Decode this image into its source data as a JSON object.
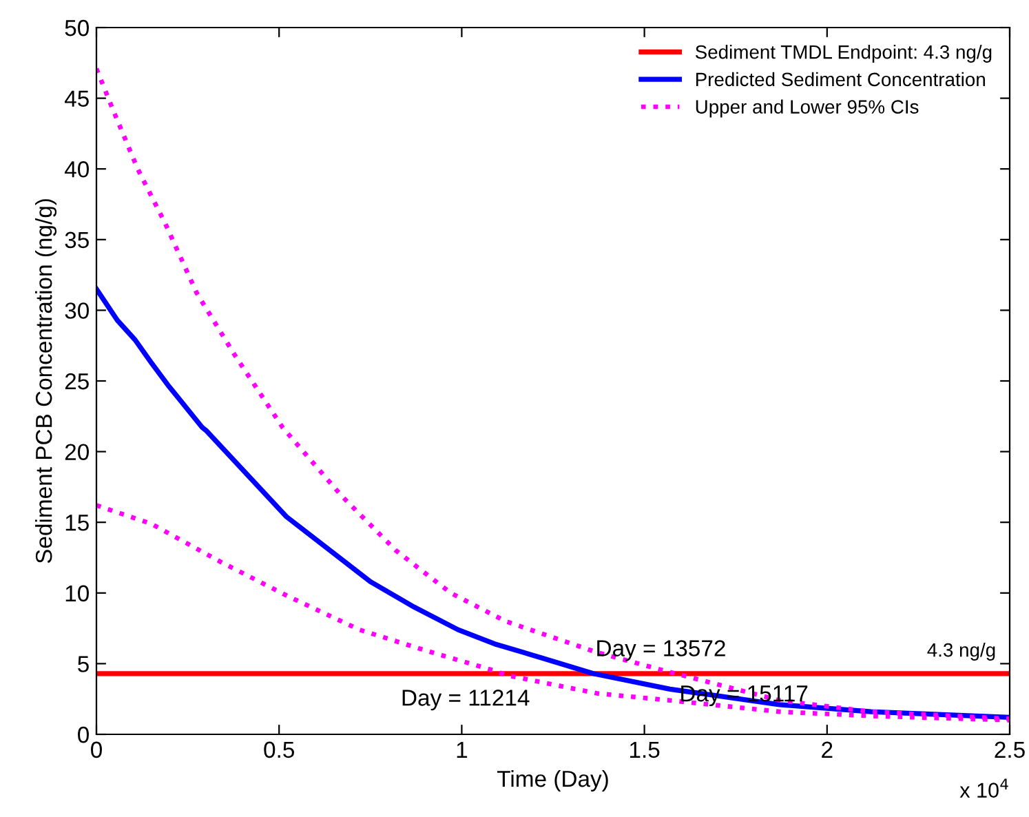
{
  "chart_data": {
    "type": "line",
    "xlabel": "Time (Day)",
    "ylabel": "Sediment PCB Concentration (ng/g)",
    "xlim": [
      0,
      2.5
    ],
    "ylim": [
      0,
      50
    ],
    "xticks": [
      0,
      0.5,
      1,
      1.5,
      2,
      2.5
    ],
    "yticks": [
      0,
      5,
      10,
      15,
      20,
      25,
      30,
      35,
      40,
      45,
      50
    ],
    "grid": false,
    "legend": "top right",
    "series": [
      {
        "name": "Sediment TMDL Endpoint: 4.3 ng/g",
        "color": "#ff0000",
        "line_style": "solid",
        "x": [
          0,
          2.5
        ],
        "values": [
          4.3,
          4.3
        ]
      },
      {
        "name": "Predicted Sediment Concentration",
        "color": "#0000ff",
        "line_style": "solid",
        "x": [
          0,
          0.057,
          0.106,
          0.15,
          0.196,
          0.29,
          0.3,
          0.52,
          0.63,
          0.75,
          0.87,
          0.99,
          1.09,
          1.22,
          1.36,
          1.57,
          1.87,
          2.12,
          2.5
        ],
        "values": [
          31.5,
          29.3,
          27.9,
          26.3,
          24.7,
          21.7,
          21.5,
          15.4,
          13.2,
          10.8,
          9.0,
          7.4,
          6.4,
          5.4,
          4.3,
          3.2,
          2.1,
          1.6,
          1.2
        ]
      },
      {
        "name": "Upper and Lower 95% CIs",
        "color": "#ff00ff",
        "line_style": "dotted",
        "x": [
          0,
          0.045,
          0.113,
          0.189,
          0.275,
          0.377,
          0.51,
          0.55,
          0.67,
          0.82,
          0.97,
          1.09,
          1.12,
          1.37,
          1.57,
          1.87,
          2.12,
          2.5
        ],
        "values": [
          47.1,
          44.2,
          40.0,
          36.1,
          31.2,
          26.9,
          21.7,
          20.5,
          16.9,
          13.0,
          10.0,
          8.4,
          8.0,
          5.8,
          4.4,
          2.4,
          1.6,
          1.1
        ]
      },
      {
        "color": "#ff00ff",
        "line_style": "dotted",
        "x": [
          0,
          0.15,
          0.34,
          0.53,
          0.72,
          0.905,
          1.09,
          1.12,
          1.37,
          1.57,
          1.87,
          2.12,
          2.5
        ],
        "values": [
          16.2,
          14.9,
          12.2,
          9.7,
          7.4,
          5.9,
          4.5,
          4.2,
          2.9,
          2.4,
          1.6,
          1.3,
          1.0
        ]
      }
    ],
    "annotations": [
      "Day = 13572",
      "Day = 11214",
      "Day = 15117",
      "4.3 ng/g",
      "x 10$^{4}$"
    ]
  }
}
